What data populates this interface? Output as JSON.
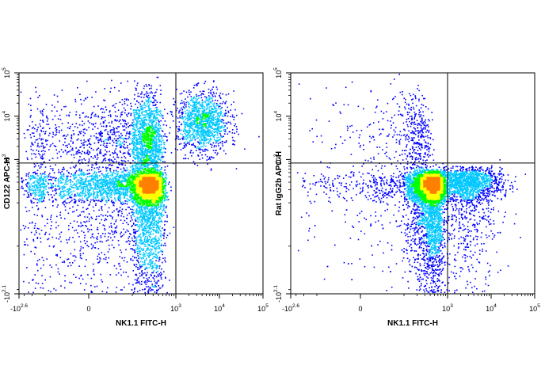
{
  "chart_data": [
    {
      "type": "scatter",
      "style": "flow cytometry pseudocolor density plot",
      "xlabel": "NK1.1 FITC-H",
      "ylabel": "CD122 APC-H",
      "x_scale": "biexponential",
      "y_scale": "biexponential",
      "xlim": [
        -398,
        100000
      ],
      "ylim": [
        -126,
        100000
      ],
      "x_ticks": [
        {
          "base": "-10",
          "exp": "2.6",
          "value": -398
        },
        {
          "base": "0",
          "exp": "",
          "value": 0
        },
        {
          "base": "10",
          "exp": "3",
          "value": 1000
        },
        {
          "base": "10",
          "exp": "4",
          "value": 10000
        },
        {
          "base": "10",
          "exp": "5",
          "value": 100000
        }
      ],
      "y_ticks": [
        {
          "base": "-10",
          "exp": "2.1",
          "value": -126
        },
        {
          "base": "10",
          "exp": "3",
          "value": 1000
        },
        {
          "base": "10",
          "exp": "4",
          "value": 10000
        },
        {
          "base": "10",
          "exp": "5",
          "value": 100000
        }
      ],
      "quadrant_gate": {
        "x": 1000,
        "y": 830
      },
      "populations": [
        {
          "center": [
            170,
            180
          ],
          "spread": [
            170,
            150
          ],
          "weight": 0.6
        },
        {
          "center": [
            150,
            2500
          ],
          "spread": [
            150,
            0.55
          ],
          "weight": 0.26
        },
        {
          "center": [
            4200,
            7000
          ],
          "spread": [
            0.3,
            0.35
          ],
          "weight": 0.14
        }
      ],
      "density_colors": [
        "#0000ff",
        "#00c8ff",
        "#00ff00",
        "#ffff00",
        "#ff8000",
        "#ff0000"
      ]
    },
    {
      "type": "scatter",
      "style": "flow cytometry pseudocolor density plot",
      "xlabel": "NK1.1 FITC-H",
      "ylabel": "Rat IgG2b APC-H",
      "x_scale": "biexponential",
      "y_scale": "biexponential",
      "xlim": [
        -398,
        100000
      ],
      "ylim": [
        -126,
        100000
      ],
      "x_ticks": [
        {
          "base": "-10",
          "exp": "2.6",
          "value": -398
        },
        {
          "base": "0",
          "exp": "",
          "value": 0
        },
        {
          "base": "10",
          "exp": "3",
          "value": 1000
        },
        {
          "base": "10",
          "exp": "4",
          "value": 10000
        },
        {
          "base": "10",
          "exp": "5",
          "value": 100000
        }
      ],
      "y_ticks": [
        {
          "base": "-10",
          "exp": "2.1",
          "value": -126
        },
        {
          "base": "10",
          "exp": "3",
          "value": 1000
        },
        {
          "base": "10",
          "exp": "4",
          "value": 10000
        },
        {
          "base": "10",
          "exp": "5",
          "value": 100000
        }
      ],
      "quadrant_gate": {
        "x": 1000,
        "y": 830
      },
      "populations": [
        {
          "center": [
            400,
            200
          ],
          "spread": [
            200,
            140
          ],
          "weight": 0.72
        },
        {
          "center": [
            2500,
            250
          ],
          "spread": [
            0.42,
            170
          ],
          "weight": 0.22
        },
        {
          "center": [
            150,
            3000
          ],
          "spread": [
            120,
            0.6
          ],
          "weight": 0.06
        }
      ],
      "density_colors": [
        "#0000ff",
        "#00c8ff",
        "#00ff00",
        "#ffff00",
        "#ff8000",
        "#ff0000"
      ]
    }
  ]
}
